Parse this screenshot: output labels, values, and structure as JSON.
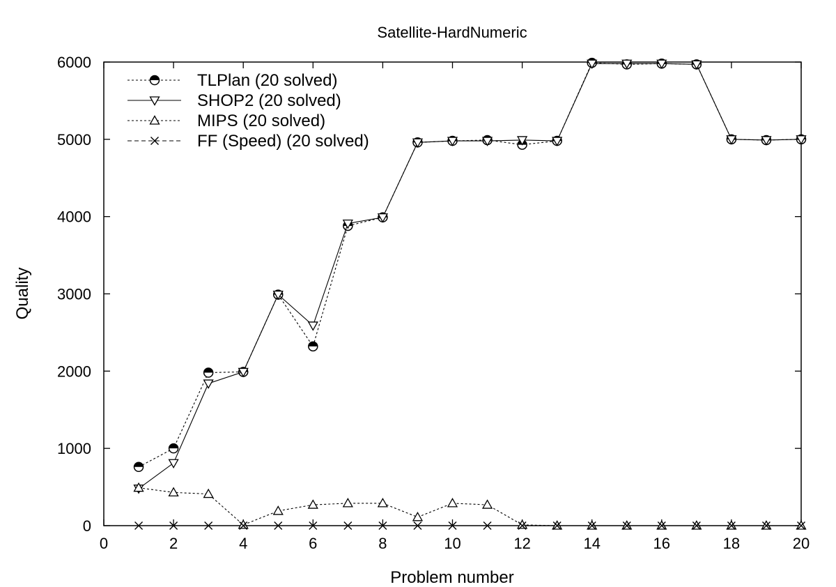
{
  "chart_data": {
    "type": "line",
    "title": "Satellite-HardNumeric",
    "xlabel": "Problem number",
    "ylabel": "Quality",
    "xlim": [
      0,
      20
    ],
    "ylim": [
      0,
      6000
    ],
    "xticks": [
      "0",
      "2",
      "4",
      "6",
      "8",
      "10",
      "12",
      "14",
      "16",
      "18",
      "20"
    ],
    "yticks": [
      "0",
      "1000",
      "2000",
      "3000",
      "4000",
      "5000",
      "6000"
    ],
    "grid": false,
    "legend_position": "top-left",
    "x": [
      1,
      2,
      3,
      4,
      5,
      6,
      7,
      8,
      9,
      10,
      11,
      12,
      13,
      14,
      15,
      16,
      17,
      18,
      19,
      20
    ],
    "series": [
      {
        "name": "TLPlan (20 solved)",
        "marker": "half-filled-circle",
        "line_style": "dotted",
        "x": [
          1,
          2,
          3,
          4,
          5,
          6,
          7,
          8,
          9,
          10,
          11,
          12,
          13,
          14,
          15,
          16,
          17,
          18,
          19,
          20
        ],
        "values": [
          760,
          1000,
          1980,
          1990,
          2990,
          2320,
          3880,
          3990,
          4960,
          4980,
          4990,
          4930,
          4980,
          5990,
          5970,
          5980,
          5970,
          5000,
          4990,
          5000
        ]
      },
      {
        "name": "SHOP2 (20 solved)",
        "marker": "triangle-down",
        "line_style": "solid",
        "x": [
          1,
          2,
          3,
          4,
          5,
          6,
          7,
          8,
          9,
          10,
          11,
          12,
          13,
          14,
          15,
          16,
          17,
          18,
          19,
          20
        ],
        "values": [
          480,
          810,
          1840,
          1990,
          2990,
          2590,
          3910,
          3990,
          4960,
          4980,
          4980,
          4990,
          4980,
          5980,
          5980,
          5980,
          5970,
          5000,
          4990,
          5000
        ]
      },
      {
        "name": "MIPS (20 solved)",
        "marker": "triangle-up",
        "line_style": "dotted",
        "x": [
          1,
          2,
          3,
          4,
          5,
          6,
          7,
          8,
          9,
          10,
          11,
          12,
          13,
          14,
          15,
          16,
          17,
          18,
          19,
          20
        ],
        "values": [
          490,
          430,
          410,
          10,
          190,
          270,
          290,
          290,
          110,
          290,
          270,
          10,
          0,
          0,
          0,
          0,
          0,
          0,
          0,
          0
        ]
      },
      {
        "name": "FF (Speed) (20 solved)",
        "marker": "x",
        "line_style": "dashed",
        "x": [
          1,
          2,
          3,
          4,
          5,
          6,
          7,
          8,
          9,
          10,
          11,
          12,
          13,
          14,
          15,
          16,
          17,
          18,
          19,
          20
        ],
        "values": [
          0,
          0,
          0,
          0,
          0,
          0,
          0,
          0,
          0,
          0,
          0,
          0,
          0,
          0,
          0,
          0,
          0,
          0,
          0,
          0
        ]
      }
    ]
  }
}
